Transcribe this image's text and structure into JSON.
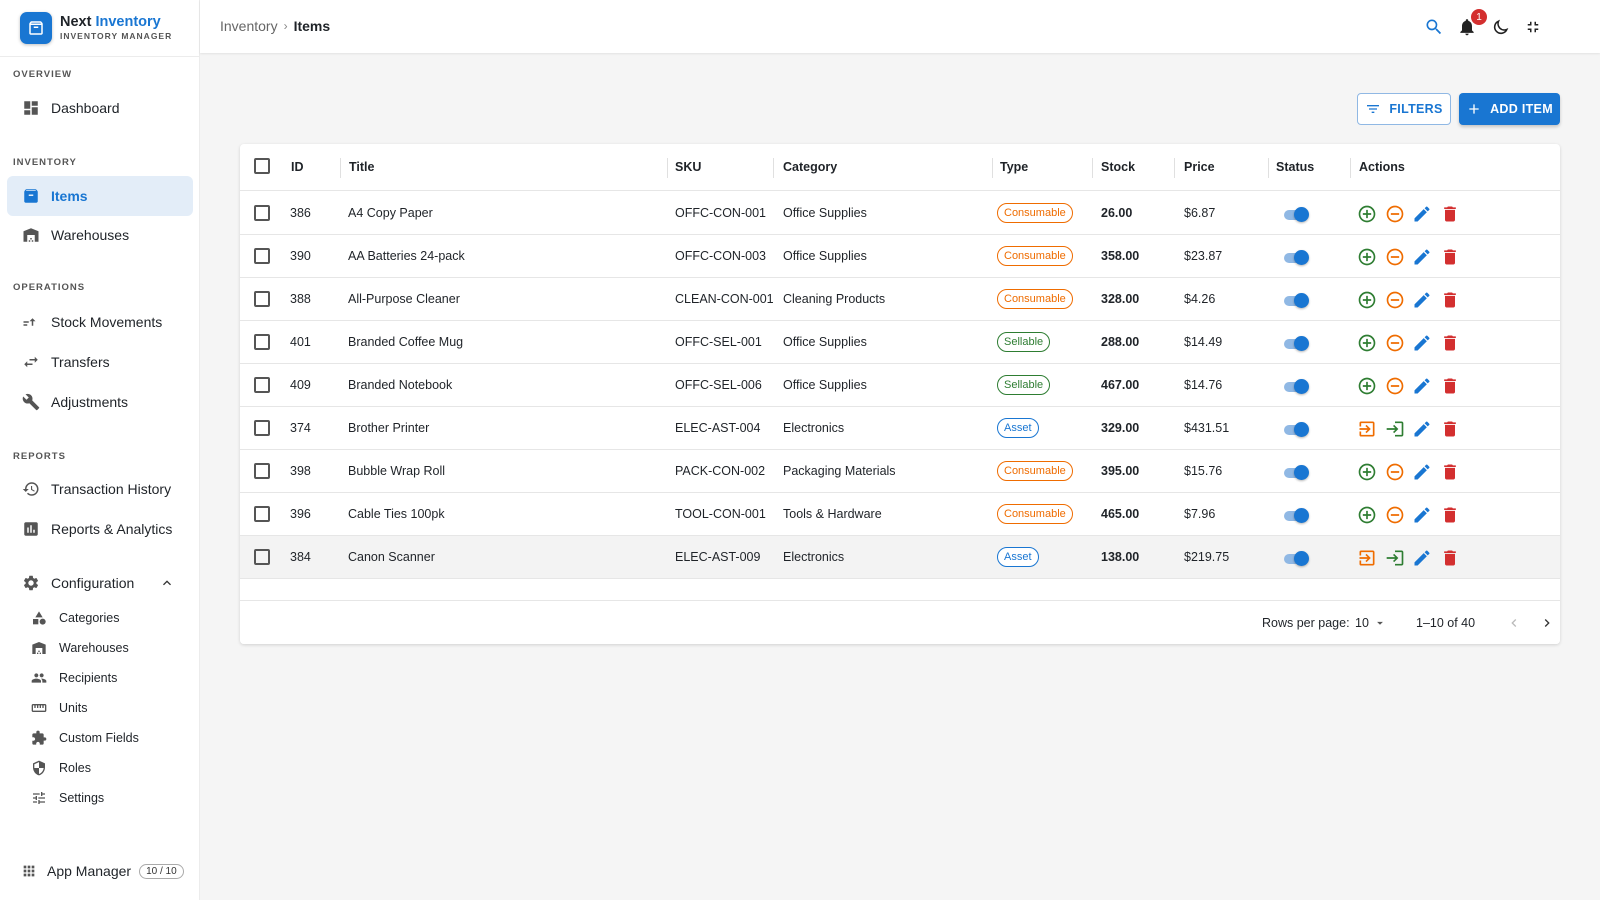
{
  "brand": {
    "name_a": "Next",
    "name_b": "Inventory",
    "subtitle": "INVENTORY MANAGER"
  },
  "sidebar": {
    "sections": {
      "overview": "OVERVIEW",
      "inventory": "INVENTORY",
      "operations": "OPERATIONS",
      "reports": "REPORTS"
    },
    "items": {
      "dashboard": "Dashboard",
      "items": "Items",
      "warehouses": "Warehouses",
      "stock_movements": "Stock Movements",
      "transfers": "Transfers",
      "adjustments": "Adjustments",
      "transaction_history": "Transaction History",
      "reports_analytics": "Reports & Analytics",
      "configuration": "Configuration"
    },
    "config_items": {
      "categories": "Categories",
      "warehouses": "Warehouses",
      "recipients": "Recipients",
      "units": "Units",
      "custom_fields": "Custom Fields",
      "roles": "Roles",
      "settings": "Settings"
    },
    "app_manager": {
      "label": "App Manager",
      "count": "10 / 10"
    }
  },
  "header": {
    "breadcrumb": [
      "Inventory",
      "Items"
    ],
    "notification_count": "1",
    "icons": [
      "search-icon",
      "bell-icon",
      "moon-icon",
      "collapse-icon"
    ]
  },
  "toolbar": {
    "filters_label": "FILTERS",
    "add_label": "ADD ITEM"
  },
  "table": {
    "columns": [
      "ID",
      "Title",
      "SKU",
      "Category",
      "Type",
      "Stock",
      "Price",
      "Status",
      "Actions"
    ],
    "rows": [
      {
        "id": "386",
        "title": "A4 Copy Paper",
        "sku": "OFFC-CON-001",
        "category": "Office Supplies",
        "type": "Consumable",
        "stock": "26.00",
        "price": "$6.87",
        "status": true
      },
      {
        "id": "390",
        "title": "AA Batteries 24-pack",
        "sku": "OFFC-CON-003",
        "category": "Office Supplies",
        "type": "Consumable",
        "stock": "358.00",
        "price": "$23.87",
        "status": true
      },
      {
        "id": "388",
        "title": "All-Purpose Cleaner",
        "sku": "CLEAN-CON-001",
        "category": "Cleaning Products",
        "type": "Consumable",
        "stock": "328.00",
        "price": "$4.26",
        "status": true
      },
      {
        "id": "401",
        "title": "Branded Coffee Mug",
        "sku": "OFFC-SEL-001",
        "category": "Office Supplies",
        "type": "Sellable",
        "stock": "288.00",
        "price": "$14.49",
        "status": true
      },
      {
        "id": "409",
        "title": "Branded Notebook",
        "sku": "OFFC-SEL-006",
        "category": "Office Supplies",
        "type": "Sellable",
        "stock": "467.00",
        "price": "$14.76",
        "status": true
      },
      {
        "id": "374",
        "title": "Brother Printer",
        "sku": "ELEC-AST-004",
        "category": "Electronics",
        "type": "Asset",
        "stock": "329.00",
        "price": "$431.51",
        "status": true
      },
      {
        "id": "398",
        "title": "Bubble Wrap Roll",
        "sku": "PACK-CON-002",
        "category": "Packaging Materials",
        "type": "Consumable",
        "stock": "395.00",
        "price": "$15.76",
        "status": true
      },
      {
        "id": "396",
        "title": "Cable Ties 100pk",
        "sku": "TOOL-CON-001",
        "category": "Tools & Hardware",
        "type": "Consumable",
        "stock": "465.00",
        "price": "$7.96",
        "status": true
      },
      {
        "id": "384",
        "title": "Canon Scanner",
        "sku": "ELEC-AST-009",
        "category": "Electronics",
        "type": "Asset",
        "stock": "138.00",
        "price": "$219.75",
        "status": true
      }
    ]
  },
  "pagination": {
    "rows_per_page_label": "Rows per page:",
    "rows_per_page": "10",
    "range": "1–10 of 40"
  },
  "colors": {
    "primary": "#1976d2",
    "consumable": "#ef6c00",
    "sellable": "#2e7d32",
    "danger": "#d32f2f"
  }
}
